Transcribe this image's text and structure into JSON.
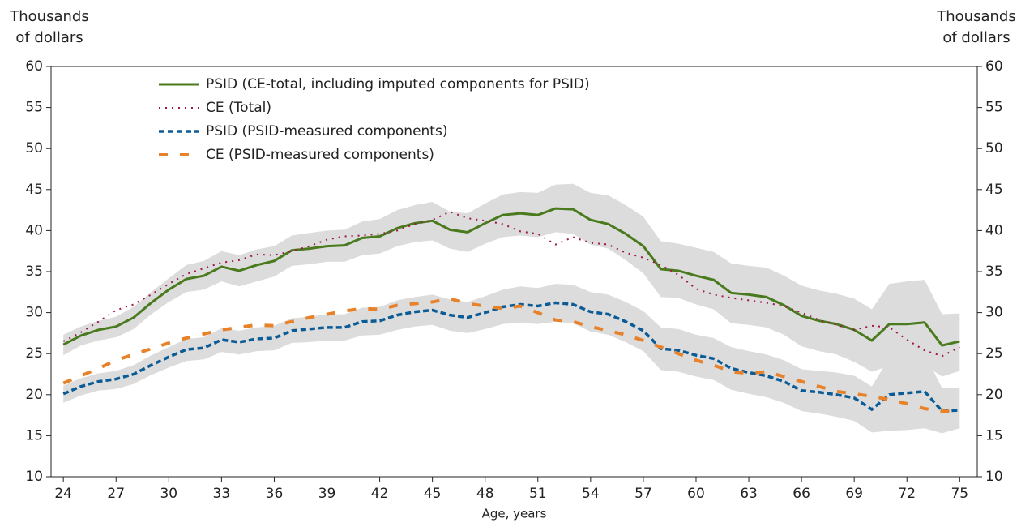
{
  "chart_data": {
    "type": "line",
    "y_label": "Thousands of dollars",
    "y2_label": "Thousands of dollars",
    "x_label": "Age, years",
    "x": [
      24,
      25,
      26,
      27,
      28,
      29,
      30,
      31,
      32,
      33,
      34,
      35,
      36,
      37,
      38,
      39,
      40,
      41,
      42,
      43,
      44,
      45,
      46,
      47,
      48,
      49,
      50,
      51,
      52,
      53,
      54,
      55,
      56,
      57,
      58,
      59,
      60,
      61,
      62,
      63,
      64,
      65,
      66,
      67,
      68,
      69,
      70,
      71,
      72,
      73,
      74,
      75
    ],
    "xlim": [
      23.3,
      76
    ],
    "xticks": [
      24,
      27,
      30,
      33,
      36,
      39,
      42,
      45,
      48,
      51,
      54,
      57,
      60,
      63,
      66,
      69,
      72,
      75
    ],
    "ylim": [
      10,
      60
    ],
    "yticks": [
      10,
      15,
      20,
      25,
      30,
      35,
      40,
      45,
      50,
      55,
      60
    ],
    "y2lim": [
      10,
      60
    ],
    "y2ticks": [
      10,
      15,
      20,
      25,
      30,
      35,
      40,
      45,
      50,
      55,
      60
    ],
    "legend": "upper left",
    "bands": [
      {
        "color": "#dcdcdc",
        "upper": [
          27.3,
          28.3,
          29.0,
          29.5,
          30.7,
          32.5,
          34.2,
          35.8,
          36.3,
          37.5,
          37.0,
          37.7,
          38.1,
          39.4,
          39.7,
          40.0,
          40.1,
          41.1,
          41.4,
          42.5,
          43.1,
          43.5,
          42.3,
          42.1,
          43.3,
          44.4,
          44.7,
          44.6,
          45.6,
          45.7,
          44.6,
          44.3,
          43.1,
          41.7,
          38.7,
          38.4,
          37.9,
          37.4,
          36.0,
          35.7,
          35.5,
          34.5,
          33.3,
          32.7,
          32.3,
          31.7,
          30.4,
          33.5,
          33.8,
          34.0,
          29.8,
          29.9
        ],
        "lower": [
          24.8,
          26.0,
          26.6,
          27.0,
          28.0,
          29.8,
          31.3,
          32.5,
          32.8,
          33.8,
          33.2,
          33.8,
          34.4,
          35.7,
          35.9,
          36.2,
          36.2,
          37.0,
          37.2,
          38.1,
          38.6,
          38.8,
          37.8,
          37.4,
          38.4,
          39.2,
          39.4,
          39.2,
          39.8,
          39.6,
          38.3,
          37.8,
          36.4,
          34.8,
          31.9,
          31.8,
          31.0,
          30.4,
          28.7,
          28.5,
          28.2,
          27.3,
          25.9,
          25.3,
          24.9,
          24.0,
          22.8,
          23.5,
          23.5,
          23.6,
          22.2,
          22.9
        ]
      },
      {
        "color": "#dcdcdc",
        "upper": [
          21.1,
          22.0,
          22.6,
          22.9,
          23.6,
          24.8,
          25.8,
          26.8,
          27.0,
          28.1,
          27.8,
          28.2,
          28.4,
          29.3,
          29.5,
          29.8,
          29.8,
          30.6,
          30.7,
          31.5,
          31.9,
          32.2,
          31.6,
          31.3,
          32.0,
          32.8,
          33.2,
          33.0,
          33.5,
          33.4,
          32.5,
          32.2,
          31.3,
          30.2,
          28.2,
          28.0,
          27.3,
          26.9,
          25.8,
          25.3,
          24.9,
          24.2,
          23.1,
          22.9,
          22.7,
          22.3,
          21.0,
          24.5,
          24.8,
          25.0,
          20.8,
          20.8
        ],
        "lower": [
          19.0,
          19.9,
          20.5,
          20.7,
          21.3,
          22.4,
          23.3,
          24.1,
          24.3,
          25.2,
          24.9,
          25.3,
          25.4,
          26.3,
          26.4,
          26.6,
          26.6,
          27.2,
          27.3,
          27.9,
          28.3,
          28.5,
          27.8,
          27.5,
          28.0,
          28.6,
          28.8,
          28.6,
          28.9,
          28.7,
          27.7,
          27.3,
          26.4,
          25.3,
          23.0,
          22.8,
          22.2,
          21.8,
          20.6,
          20.1,
          19.7,
          19.0,
          18.0,
          17.7,
          17.3,
          16.8,
          15.4,
          15.6,
          15.7,
          15.9,
          15.3,
          15.9
        ]
      }
    ],
    "series": [
      {
        "name": "PSID (CE-total, including imputed components for PSID)",
        "color": "#4a7a1e",
        "dash": "none",
        "width": 3,
        "values": [
          26.1,
          27.2,
          27.9,
          28.3,
          29.4,
          31.2,
          32.8,
          34.1,
          34.5,
          35.6,
          35.1,
          35.8,
          36.3,
          37.6,
          37.8,
          38.1,
          38.2,
          39.1,
          39.3,
          40.3,
          40.9,
          41.2,
          40.1,
          39.8,
          40.9,
          41.9,
          42.1,
          41.9,
          42.7,
          42.6,
          41.3,
          40.8,
          39.6,
          38.1,
          35.3,
          35.1,
          34.5,
          34.0,
          32.4,
          32.2,
          31.9,
          30.9,
          29.6,
          29.0,
          28.6,
          27.9,
          26.6,
          28.6,
          28.6,
          28.8,
          26.0,
          26.5
        ]
      },
      {
        "name": "CE (Total)",
        "color": "#a0144a",
        "dash": "2 6",
        "width": 2,
        "values": [
          26.5,
          27.6,
          28.9,
          30.3,
          31.0,
          32.2,
          33.5,
          34.7,
          35.4,
          36.1,
          36.4,
          37.1,
          37.0,
          37.5,
          38.1,
          38.9,
          39.3,
          39.4,
          39.6,
          40.0,
          40.8,
          41.3,
          42.3,
          41.5,
          41.2,
          40.8,
          39.9,
          39.6,
          38.3,
          39.2,
          38.5,
          38.3,
          37.3,
          36.7,
          35.8,
          34.6,
          32.9,
          32.2,
          31.8,
          31.5,
          31.2,
          30.8,
          30.0,
          29.1,
          28.5,
          27.9,
          28.4,
          28.2,
          26.7,
          25.4,
          24.7,
          25.8
        ]
      },
      {
        "name": "PSID (PSID-measured components)",
        "color": "#0b5c96",
        "dash": "7 4",
        "width": 3.5,
        "values": [
          20.1,
          21.0,
          21.6,
          21.9,
          22.5,
          23.6,
          24.6,
          25.5,
          25.7,
          26.7,
          26.4,
          26.8,
          26.9,
          27.8,
          28.0,
          28.2,
          28.2,
          28.9,
          29.0,
          29.7,
          30.1,
          30.3,
          29.7,
          29.4,
          30.0,
          30.7,
          31.0,
          30.8,
          31.2,
          31.0,
          30.1,
          29.8,
          28.9,
          27.8,
          25.6,
          25.4,
          24.8,
          24.4,
          23.2,
          22.7,
          22.3,
          21.6,
          20.5,
          20.3,
          20.0,
          19.6,
          18.2,
          20.0,
          20.2,
          20.4,
          18.0,
          18.1
        ]
      },
      {
        "name": "CE (PSID-measured components)",
        "color": "#e8822a",
        "dash": "11 15",
        "width": 4,
        "values": [
          21.4,
          22.3,
          23.2,
          24.2,
          24.9,
          25.6,
          26.3,
          26.9,
          27.4,
          27.9,
          28.2,
          28.5,
          28.4,
          28.9,
          29.4,
          29.8,
          30.2,
          30.5,
          30.4,
          30.9,
          31.1,
          31.3,
          31.7,
          31.1,
          30.8,
          30.5,
          30.8,
          30.0,
          29.1,
          28.9,
          28.3,
          27.8,
          27.3,
          26.6,
          25.8,
          25.0,
          24.2,
          23.6,
          22.8,
          22.6,
          22.8,
          22.2,
          21.6,
          21.0,
          20.4,
          20.1,
          19.8,
          19.4,
          18.9,
          18.3,
          18.0,
          17.9
        ]
      }
    ]
  }
}
